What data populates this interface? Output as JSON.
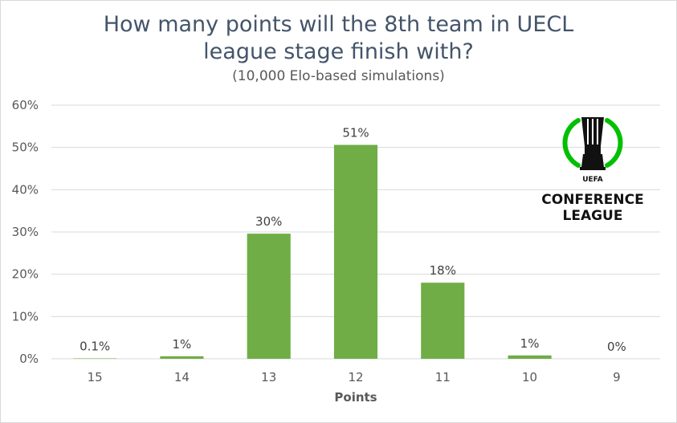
{
  "chart_data": {
    "type": "bar",
    "title": "How many points will the 8th team in UECL league stage finish with?",
    "title_lines": [
      "How many points will the 8th team in UECL",
      "league stage finish with?"
    ],
    "subtitle": "(10,000 Elo-based simulations)",
    "xlabel": "Points",
    "ylabel": "",
    "categories": [
      "15",
      "14",
      "13",
      "12",
      "11",
      "10",
      "9"
    ],
    "values": [
      0.1,
      0.6,
      29.6,
      50.6,
      18.0,
      0.8,
      0
    ],
    "data_labels": [
      "0.1%",
      "1%",
      "30%",
      "51%",
      "18%",
      "1%",
      "0%"
    ],
    "ylim": [
      0,
      60
    ],
    "yticks": [
      0,
      10,
      20,
      30,
      40,
      50,
      60
    ],
    "ytick_labels": [
      "0%",
      "10%",
      "20%",
      "30%",
      "40%",
      "50%",
      "60%"
    ],
    "grid": true,
    "bar_color": "#70ad47",
    "grid_color": "#d9d9d9"
  },
  "logo": {
    "name": "uefa-conference-league-logo",
    "line1": "UEFA",
    "line2": "CONFERENCE",
    "line3": "LEAGUE",
    "accent": "#00c000"
  }
}
